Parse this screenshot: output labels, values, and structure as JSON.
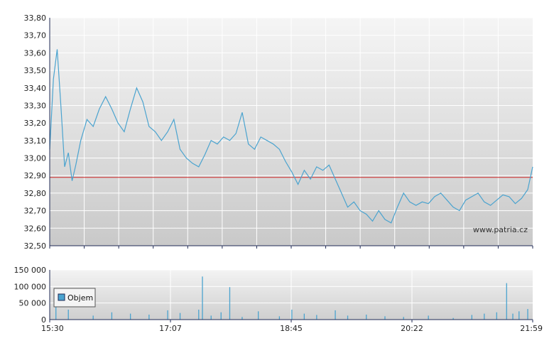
{
  "watermark": "www.patria.cz",
  "legend": {
    "volume_label": "Objem"
  },
  "colors": {
    "line": "#4aa3cf",
    "reference": "#cc2222",
    "volume": "#4aa3cf",
    "grid": "#ffffff",
    "axis": "#1f2a55"
  },
  "chart_data": [
    {
      "type": "line",
      "title": "",
      "xlabel": "",
      "ylabel": "",
      "ylim": [
        32.5,
        33.8
      ],
      "y_ticks": [
        "32,50",
        "32,60",
        "32,70",
        "32,80",
        "32,90",
        "33,00",
        "33,10",
        "33,20",
        "33,30",
        "33,40",
        "33,50",
        "33,60",
        "33,70",
        "33,80"
      ],
      "reference_line": 32.89,
      "grid": true,
      "x_range": [
        "15:30",
        "21:59"
      ],
      "series": [
        {
          "x": [
            "15:30",
            "15:33",
            "15:36",
            "15:39",
            "15:42",
            "15:45",
            "15:48",
            "15:51",
            "15:55",
            "16:00",
            "16:05",
            "16:10",
            "16:15",
            "16:20",
            "16:25",
            "16:30",
            "16:35",
            "16:40",
            "16:45",
            "16:50",
            "16:55",
            "17:00",
            "17:05",
            "17:10",
            "17:15",
            "17:20",
            "17:25",
            "17:30",
            "17:35",
            "17:40",
            "17:45",
            "17:50",
            "17:55",
            "18:00",
            "18:05",
            "18:10",
            "18:15",
            "18:20",
            "18:25",
            "18:30",
            "18:35",
            "18:40",
            "18:45",
            "18:50",
            "18:55",
            "19:00",
            "19:05",
            "19:10",
            "19:15",
            "19:20",
            "19:25",
            "19:30",
            "19:35",
            "19:40",
            "19:45",
            "19:50",
            "19:55",
            "20:00",
            "20:05",
            "20:10",
            "20:15",
            "20:20",
            "20:25",
            "20:30",
            "20:35",
            "20:40",
            "20:45",
            "20:50",
            "20:55",
            "21:00",
            "21:05",
            "21:10",
            "21:15",
            "21:20",
            "21:25",
            "21:30",
            "21:35",
            "21:40",
            "21:45",
            "21:50",
            "21:55",
            "21:59"
          ],
          "values": [
            33.05,
            33.45,
            33.62,
            33.3,
            32.95,
            33.03,
            32.87,
            32.96,
            33.1,
            33.22,
            33.18,
            33.28,
            33.35,
            33.28,
            33.2,
            33.15,
            33.28,
            33.4,
            33.32,
            33.18,
            33.15,
            33.1,
            33.15,
            33.22,
            33.05,
            33.0,
            32.97,
            32.95,
            33.02,
            33.1,
            33.08,
            33.12,
            33.1,
            33.14,
            33.26,
            33.08,
            33.05,
            33.12,
            33.1,
            33.08,
            33.05,
            32.98,
            32.92,
            32.85,
            32.93,
            32.88,
            32.95,
            32.93,
            32.96,
            32.88,
            32.8,
            32.72,
            32.75,
            32.7,
            32.68,
            32.64,
            32.7,
            32.65,
            32.63,
            32.72,
            32.8,
            32.75,
            32.73,
            32.75,
            32.74,
            32.78,
            32.8,
            32.76,
            32.72,
            32.7,
            32.76,
            32.78,
            32.8,
            32.75,
            32.73,
            32.76,
            32.79,
            32.78,
            32.74,
            32.77,
            32.82,
            32.95
          ]
        }
      ]
    },
    {
      "type": "bar",
      "title": "",
      "xlabel": "",
      "ylabel": "",
      "ylim": [
        0,
        150000
      ],
      "y_ticks": [
        "0",
        "50 000",
        "100 000",
        "150 000"
      ],
      "x_ticks": [
        "15:30",
        "17:07",
        "18:45",
        "20:22",
        "21:59"
      ],
      "grid": true,
      "series": [
        {
          "name": "Objem",
          "x": [
            "15:35",
            "15:45",
            "16:05",
            "16:20",
            "16:35",
            "16:50",
            "17:05",
            "17:15",
            "17:30",
            "17:33",
            "17:40",
            "17:48",
            "17:55",
            "18:05",
            "18:18",
            "18:35",
            "18:45",
            "18:55",
            "19:05",
            "19:20",
            "19:30",
            "19:45",
            "20:00",
            "20:15",
            "20:35",
            "20:55",
            "21:10",
            "21:20",
            "21:30",
            "21:38",
            "21:43",
            "21:48",
            "21:55"
          ],
          "values": [
            38000,
            30000,
            12000,
            22000,
            18000,
            15000,
            28000,
            20000,
            30000,
            130000,
            12000,
            22000,
            98000,
            8000,
            25000,
            10000,
            30000,
            18000,
            14000,
            28000,
            12000,
            15000,
            10000,
            8000,
            12000,
            5000,
            14000,
            18000,
            22000,
            110000,
            18000,
            25000,
            32000
          ]
        }
      ]
    }
  ]
}
